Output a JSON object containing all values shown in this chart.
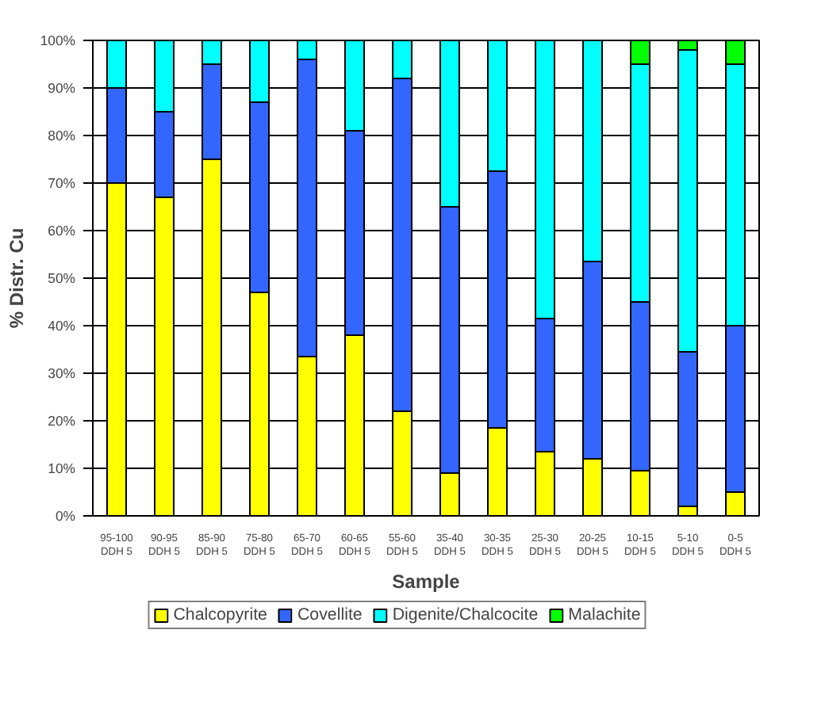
{
  "chart_data": {
    "type": "bar",
    "stacked": true,
    "xlabel": "Sample",
    "ylabel": "% Distr. Cu",
    "categories": [
      "95-100\nDDH 5",
      "90-95\nDDH 5",
      "85-90\nDDH 5",
      "75-80\nDDH 5",
      "65-70\nDDH 5",
      "60-65\nDDH 5",
      "55-60\nDDH 5",
      "35-40\nDDH 5",
      "30-35\nDDH 5",
      "25-30\nDDH 5",
      "20-25\nDDH 5",
      "10-15\nDDH 5",
      "5-10\nDDH 5",
      "0-5\nDDH 5"
    ],
    "series": [
      {
        "name": "Chalcopyrite",
        "color": "#ffff00",
        "values": [
          70,
          67,
          75,
          47,
          33.5,
          38,
          22,
          9,
          18.5,
          13.5,
          12,
          9.5,
          2,
          5
        ]
      },
      {
        "name": "Covellite",
        "color": "#3366ff",
        "values": [
          20,
          18,
          20,
          40,
          62.5,
          43,
          70,
          56,
          54,
          28,
          41.5,
          35.5,
          32.5,
          35
        ]
      },
      {
        "name": "Digenite/Chalcocite",
        "color": "#00ffff",
        "values": [
          10,
          15,
          5,
          13,
          4,
          19,
          8,
          35,
          27.5,
          58.5,
          46.5,
          50,
          63.5,
          55
        ]
      },
      {
        "name": "Malachite",
        "color": "#00ff00",
        "values": [
          0,
          0,
          0,
          0,
          0,
          0,
          0,
          0,
          0,
          0,
          0,
          5,
          2,
          5
        ]
      }
    ],
    "ylim": [
      0,
      100
    ],
    "yticks": [
      {
        "value": 0,
        "label": "0%"
      },
      {
        "value": 10,
        "label": "10%"
      },
      {
        "value": 20,
        "label": "20%"
      },
      {
        "value": 30,
        "label": "30%"
      },
      {
        "value": 40,
        "label": "40%"
      },
      {
        "value": 50,
        "label": "50%"
      },
      {
        "value": 60,
        "label": "60%"
      },
      {
        "value": 70,
        "label": "70%"
      },
      {
        "value": 80,
        "label": "80%"
      },
      {
        "value": 90,
        "label": "90%"
      },
      {
        "value": 100,
        "label": "100%"
      }
    ],
    "grid": "y",
    "legend": "bottom"
  }
}
